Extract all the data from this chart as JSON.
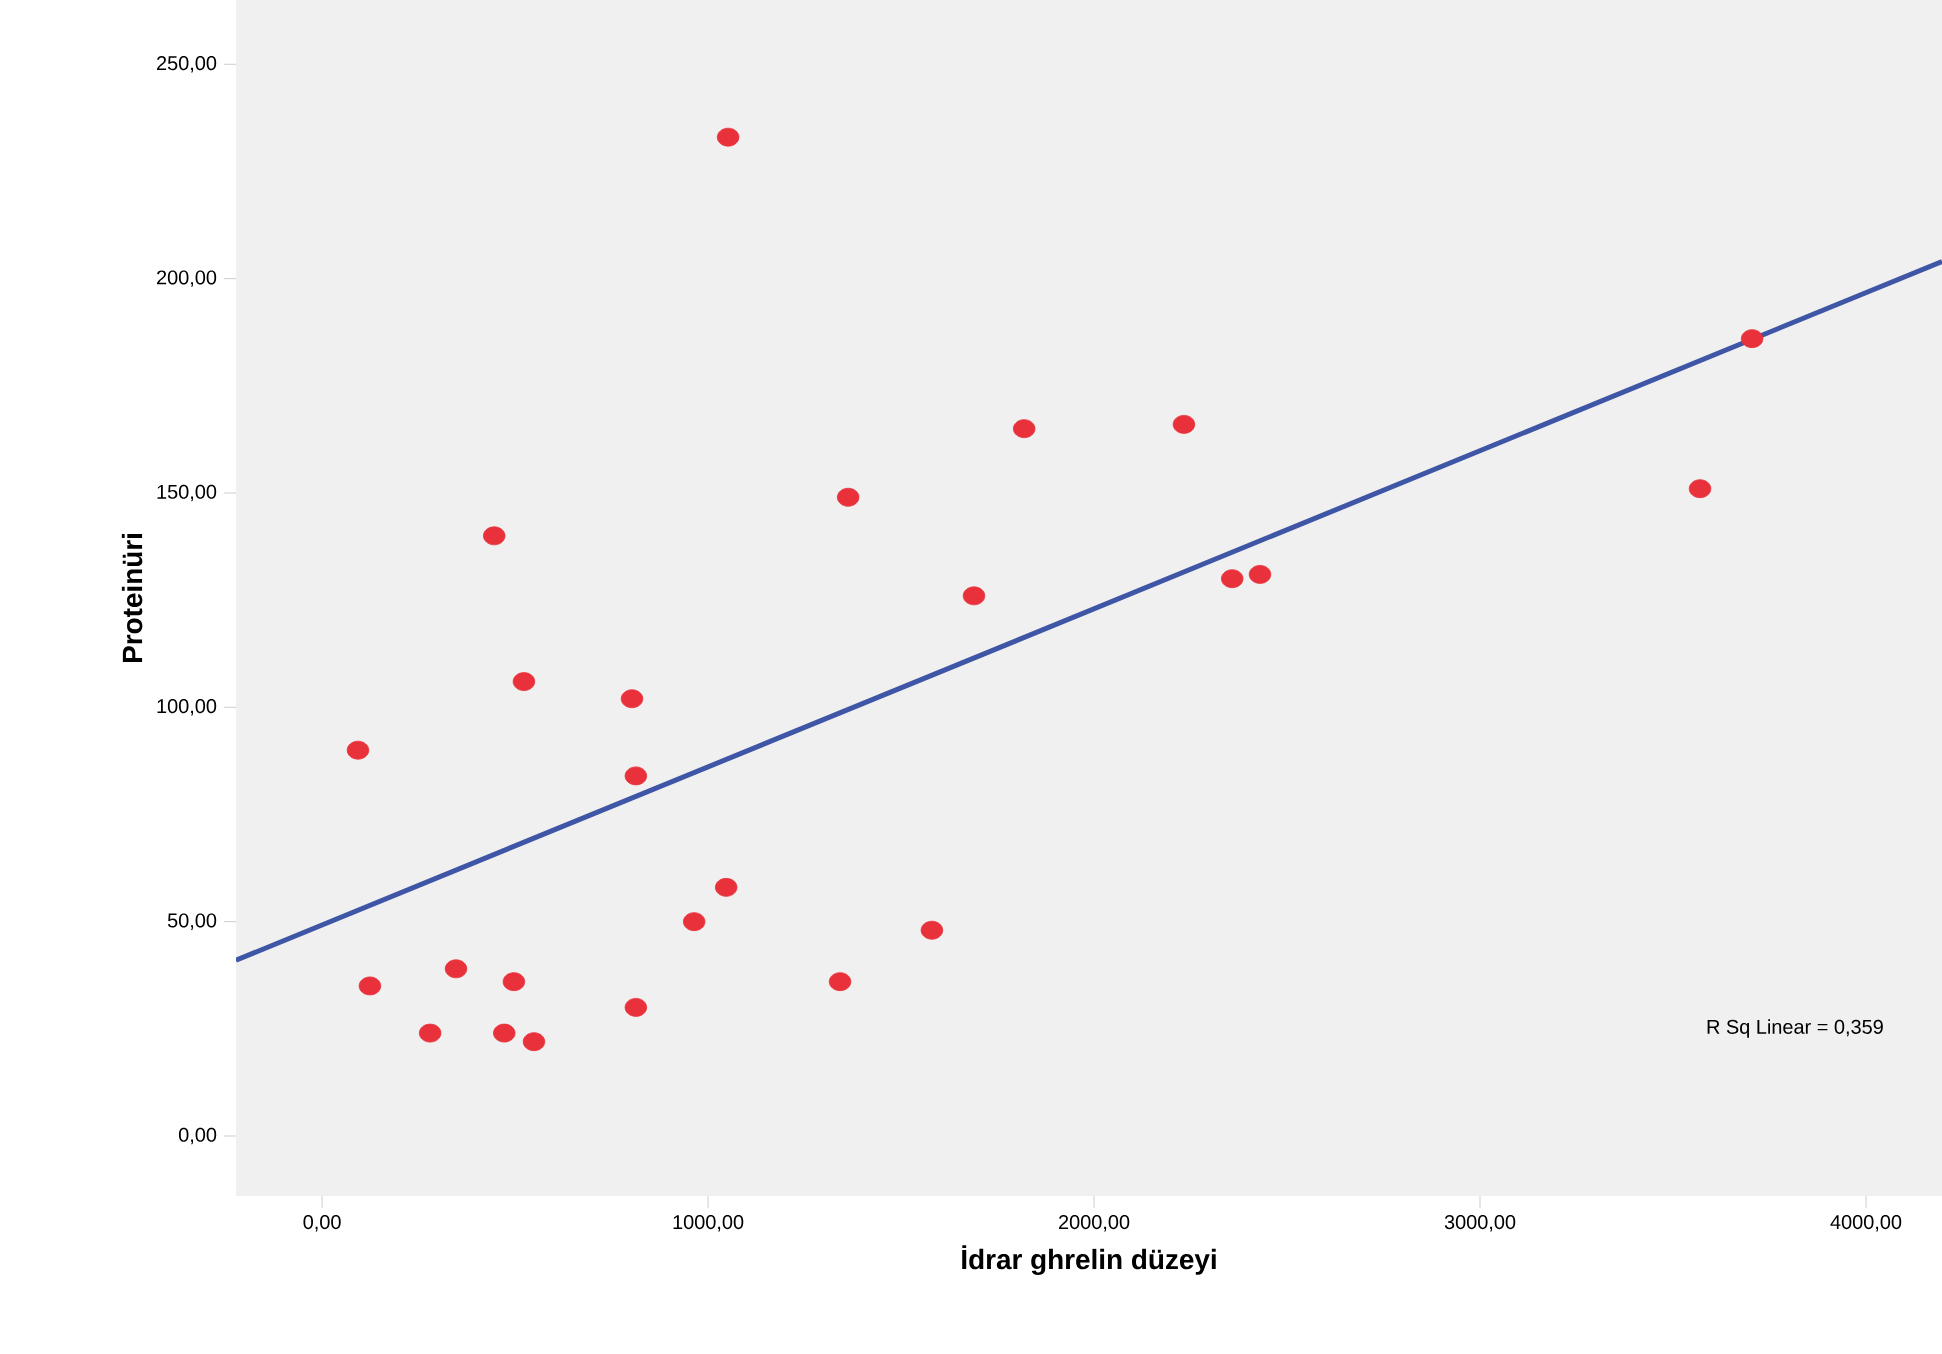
{
  "chart_data": {
    "type": "scatter",
    "xlabel": "İdrar ghrelin düzeyi",
    "ylabel": "Proteinüri",
    "annotations": [
      "R Sq Linear = 0,359"
    ],
    "xlim": [
      -223,
      4197
    ],
    "ylim": [
      -14,
      265
    ],
    "xticks": [
      {
        "value": 0,
        "label": "0,00"
      },
      {
        "value": 1000,
        "label": "1000,00"
      },
      {
        "value": 2000,
        "label": "2000,00"
      },
      {
        "value": 3000,
        "label": "3000,00"
      },
      {
        "value": 4000,
        "label": "4000,00"
      }
    ],
    "yticks": [
      {
        "value": 0,
        "label": "0,00"
      },
      {
        "value": 50,
        "label": "50,00"
      },
      {
        "value": 100,
        "label": "100,00"
      },
      {
        "value": 150,
        "label": "150,00"
      },
      {
        "value": 200,
        "label": "200,00"
      },
      {
        "value": 250,
        "label": "250,00"
      }
    ],
    "grid": false,
    "series": [
      {
        "marker": "circle",
        "color": "#e8313b",
        "x": [
          93,
          124,
          280,
          347,
          446,
          472,
          497,
          523,
          549,
          803,
          813,
          813,
          964,
          1047,
          1052,
          1342,
          1363,
          1580,
          1689,
          1819,
          2233,
          2358,
          2430,
          3570,
          3705
        ],
        "values": [
          90,
          35,
          24,
          39,
          140,
          24,
          36,
          106,
          22,
          102,
          84,
          30,
          50,
          58,
          233,
          36,
          149,
          48,
          126,
          165,
          166,
          130,
          131,
          151,
          186
        ]
      },
      {
        "type": "line",
        "marker": "none",
        "color": "#3f56a6",
        "x": [
          -223,
          4197
        ],
        "values": [
          41,
          204
        ]
      }
    ]
  }
}
